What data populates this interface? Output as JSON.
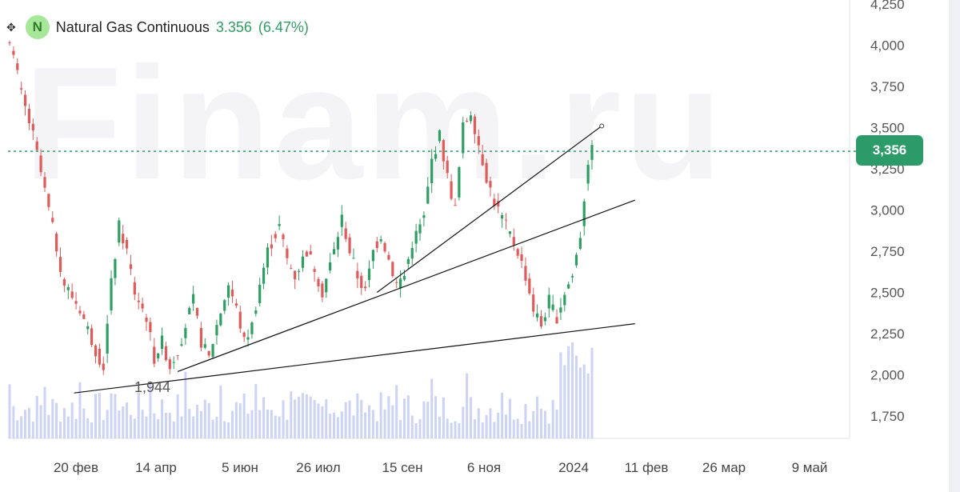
{
  "header": {
    "badge_letter": "N",
    "instrument": "Natural Gas Continuous",
    "price": "3.356",
    "change": "(6.47%)"
  },
  "watermark_text": "Finam.ru",
  "price_tag": "3,356",
  "min_marker": "1,944",
  "colors": {
    "up": "#2e9e63",
    "down": "#e05a5a",
    "volume": "#ccd3f5",
    "trend_line": "#111111",
    "price_line": "#2d9b69",
    "badge_bg": "#a6e79a"
  },
  "chart_data": {
    "type": "candlestick",
    "ylim": [
      1.65,
      4.25
    ],
    "y_ticks": [
      "4,250",
      "4,000",
      "3,750",
      "3,500",
      "3,250",
      "3,000",
      "2,750",
      "2,500",
      "2,250",
      "2,000",
      "1,750"
    ],
    "y_tick_values": [
      4.25,
      4.0,
      3.75,
      3.5,
      3.25,
      3.0,
      2.75,
      2.5,
      2.25,
      2.0,
      1.75
    ],
    "x_ticks": [
      "20 фев",
      "14 апр",
      "5 июн",
      "26 июл",
      "15 сен",
      "6 ноя",
      "2024",
      "11 фев",
      "26 мар",
      "9 май"
    ],
    "grid": false,
    "current_price": 3.356,
    "price_path": [
      [
        0,
        4.05
      ],
      [
        3,
        3.7
      ],
      [
        6,
        3.45
      ],
      [
        10,
        3.0
      ],
      [
        14,
        2.55
      ],
      [
        18,
        2.4
      ],
      [
        22,
        2.15
      ],
      [
        24,
        2.05
      ],
      [
        26,
        2.55
      ],
      [
        28,
        2.9
      ],
      [
        30,
        2.75
      ],
      [
        32,
        2.5
      ],
      [
        35,
        2.35
      ],
      [
        37,
        2.1
      ],
      [
        39,
        2.2
      ],
      [
        41,
        2.05
      ],
      [
        43,
        2.15
      ],
      [
        45,
        2.3
      ],
      [
        47,
        2.45
      ],
      [
        49,
        2.2
      ],
      [
        51,
        2.1
      ],
      [
        53,
        2.3
      ],
      [
        56,
        2.55
      ],
      [
        58,
        2.4
      ],
      [
        60,
        2.2
      ],
      [
        62,
        2.3
      ],
      [
        64,
        2.55
      ],
      [
        66,
        2.75
      ],
      [
        69,
        2.9
      ],
      [
        71,
        2.7
      ],
      [
        73,
        2.6
      ],
      [
        76,
        2.75
      ],
      [
        78,
        2.65
      ],
      [
        80,
        2.5
      ],
      [
        83,
        2.75
      ],
      [
        85,
        2.95
      ],
      [
        87,
        2.75
      ],
      [
        89,
        2.6
      ],
      [
        91,
        2.5
      ],
      [
        93,
        2.75
      ],
      [
        95,
        2.85
      ],
      [
        97,
        2.7
      ],
      [
        99,
        2.55
      ],
      [
        101,
        2.6
      ],
      [
        103,
        2.8
      ],
      [
        106,
        2.95
      ],
      [
        108,
        3.3
      ],
      [
        110,
        3.45
      ],
      [
        112,
        3.2
      ],
      [
        114,
        3.0
      ],
      [
        116,
        3.5
      ],
      [
        118,
        3.6
      ],
      [
        120,
        3.4
      ],
      [
        122,
        3.2
      ],
      [
        124,
        3.05
      ],
      [
        126,
        2.95
      ],
      [
        128,
        2.85
      ],
      [
        130,
        2.75
      ],
      [
        132,
        2.6
      ],
      [
        134,
        2.4
      ],
      [
        136,
        2.3
      ],
      [
        138,
        2.45
      ],
      [
        140,
        2.35
      ],
      [
        142,
        2.5
      ],
      [
        144,
        2.6
      ],
      [
        146,
        2.85
      ],
      [
        148,
        3.3
      ],
      [
        149,
        3.356
      ]
    ],
    "lines": [
      {
        "x1": 16.5,
        "y1": 1.89,
        "x2": 160,
        "y2": 2.31
      },
      {
        "x1": 43,
        "y1": 2.02,
        "x2": 160,
        "y2": 3.06
      },
      {
        "x1": 94,
        "y1": 2.5,
        "x2": 151.5,
        "y2": 3.51
      }
    ]
  }
}
